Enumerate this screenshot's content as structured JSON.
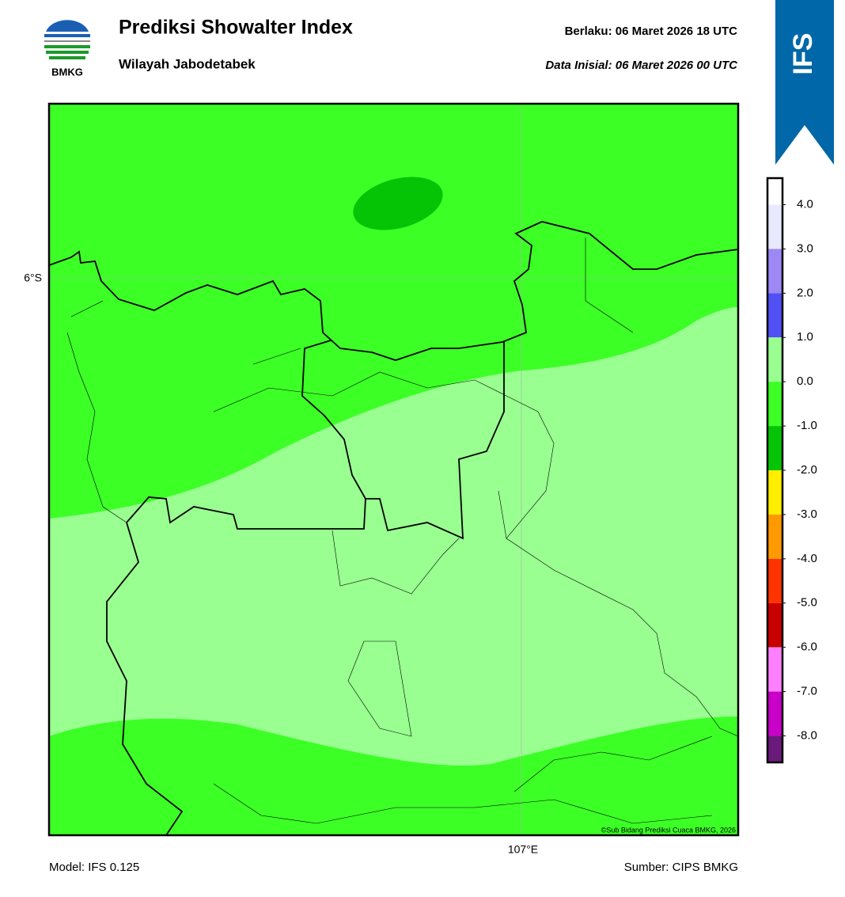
{
  "header": {
    "logo_text": "BMKG",
    "title": "Prediksi Showalter Index",
    "subtitle": "Wilayah Jabodetabek",
    "valid": "Berlaku:  06 Maret 2026 18 UTC",
    "initial": "Data Inisial:  06 Maret 2026 00 UTC",
    "badge": "IFS"
  },
  "map": {
    "lat_label": "6°S",
    "lon_label": "107°E",
    "copyright": "©Sub Bidang Prediksi Cuaca BMKG, 2026"
  },
  "colorbar": {
    "range": [
      -8.6,
      4.6
    ],
    "ticks": [
      {
        "value": 4,
        "label": "4.0"
      },
      {
        "value": 3,
        "label": "3.0"
      },
      {
        "value": 2,
        "label": "2.0"
      },
      {
        "value": 1,
        "label": "1.0"
      },
      {
        "value": 0,
        "label": "0.0"
      },
      {
        "value": -1,
        "label": "-1.0"
      },
      {
        "value": -2,
        "label": "-2.0"
      },
      {
        "value": -3,
        "label": "-3.0"
      },
      {
        "value": -4,
        "label": "-4.0"
      },
      {
        "value": -5,
        "label": "-5.0"
      },
      {
        "value": -6,
        "label": "-6.0"
      },
      {
        "value": -7,
        "label": "-7.0"
      },
      {
        "value": -8,
        "label": "-8.0"
      }
    ],
    "colors": [
      "#ffffff",
      "#e8e8ff",
      "#9d88f5",
      "#5050f5",
      "#99ff90",
      "#3cff26",
      "#05c305",
      "#ffee00",
      "#ff9900",
      "#ff3300",
      "#c80000",
      "#ff80ff",
      "#c800c8",
      "#6a1a7a"
    ]
  },
  "footer": {
    "model": "Model: IFS 0.125",
    "source": "Sumber: CIPS BMKG"
  }
}
